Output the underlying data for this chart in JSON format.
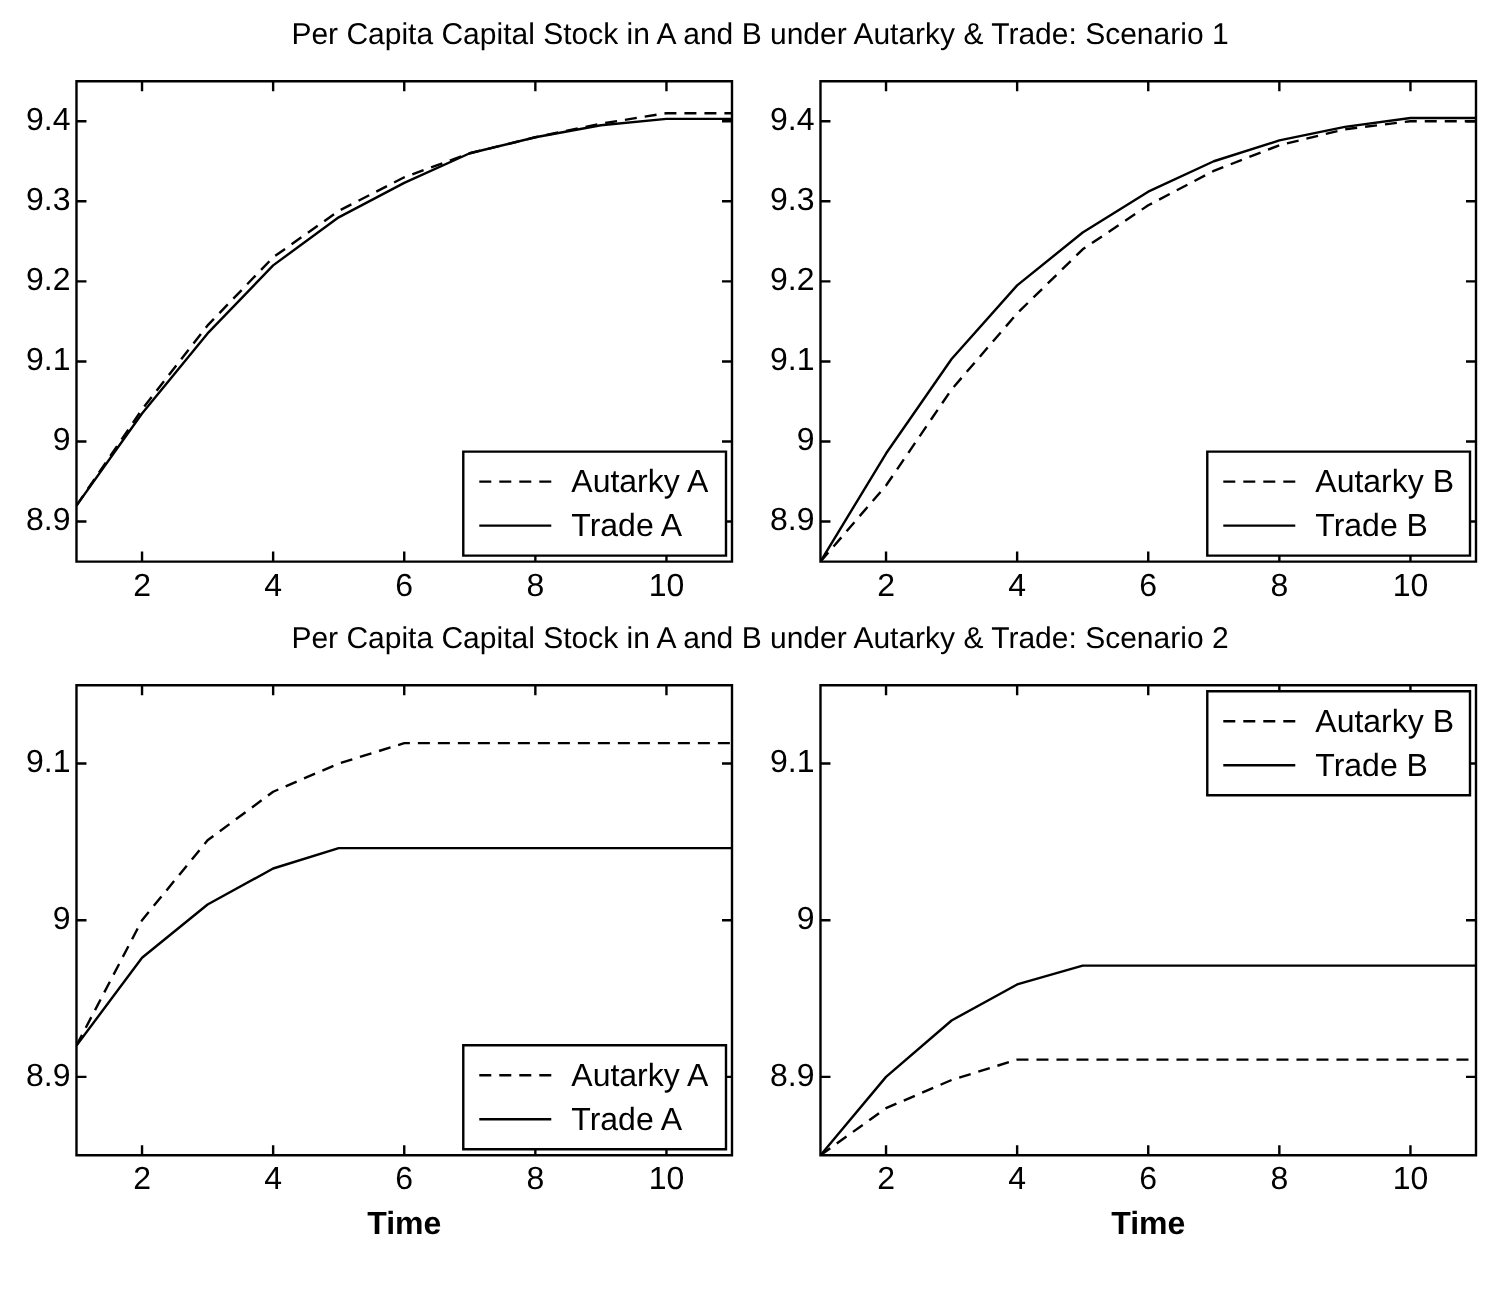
{
  "chart_data": [
    {
      "type": "line",
      "title": "Per Capita Capital Stock in A and B under Autarky & Trade: Scenario 1",
      "x": [
        1,
        2,
        3,
        4,
        5,
        6,
        7,
        8,
        9,
        10,
        11
      ],
      "xlim": [
        1,
        11
      ],
      "xticks": [
        2,
        4,
        6,
        8,
        10
      ],
      "ylim": [
        8.85,
        9.45
      ],
      "yticks": [
        8.9,
        9,
        9.1,
        9.2,
        9.3,
        9.4
      ],
      "grid": false,
      "legend": "bottom right",
      "series": [
        {
          "name": "Autarky A",
          "color": "#000000",
          "line_style": "dashed",
          "values": [
            8.92,
            9.04,
            9.145,
            9.23,
            9.288,
            9.33,
            9.36,
            9.38,
            9.397,
            9.41,
            9.41
          ]
        },
        {
          "name": "Trade A",
          "color": "#000000",
          "line_style": "solid",
          "values": [
            8.92,
            9.035,
            9.135,
            9.22,
            9.28,
            9.323,
            9.36,
            9.38,
            9.395,
            9.403,
            9.403
          ]
        }
      ]
    },
    {
      "type": "line",
      "x": [
        1,
        2,
        3,
        4,
        5,
        6,
        7,
        8,
        9,
        10,
        11
      ],
      "xlim": [
        1,
        11
      ],
      "xticks": [
        2,
        4,
        6,
        8,
        10
      ],
      "ylim": [
        8.85,
        9.45
      ],
      "yticks": [
        8.9,
        9,
        9.1,
        9.2,
        9.3,
        9.4
      ],
      "grid": false,
      "legend": "bottom right",
      "series": [
        {
          "name": "Autarky B",
          "color": "#000000",
          "line_style": "dashed",
          "values": [
            8.85,
            8.945,
            9.065,
            9.16,
            9.24,
            9.295,
            9.338,
            9.37,
            9.39,
            9.4,
            9.4
          ]
        },
        {
          "name": "Trade B",
          "color": "#000000",
          "line_style": "solid",
          "values": [
            8.85,
            8.985,
            9.103,
            9.195,
            9.261,
            9.312,
            9.35,
            9.376,
            9.393,
            9.404,
            9.404
          ]
        }
      ]
    },
    {
      "type": "line",
      "title": "Per Capita Capital Stock in A and B under Autarky & Trade: Scenario 2",
      "xlabel": "Time",
      "x": [
        1,
        2,
        3,
        4,
        5,
        6,
        7,
        8,
        9,
        10,
        11
      ],
      "xlim": [
        1,
        11
      ],
      "xticks": [
        2,
        4,
        6,
        8,
        10
      ],
      "ylim": [
        8.85,
        9.15
      ],
      "yticks": [
        8.9,
        9,
        9.1
      ],
      "grid": false,
      "legend": "bottom right",
      "series": [
        {
          "name": "Autarky A",
          "color": "#000000",
          "line_style": "dashed",
          "values": [
            8.92,
            9.0,
            9.051,
            9.082,
            9.1,
            9.113,
            9.113,
            9.113,
            9.113,
            9.113,
            9.113
          ]
        },
        {
          "name": "Trade A",
          "color": "#000000",
          "line_style": "solid",
          "values": [
            8.92,
            8.976,
            9.01,
            9.033,
            9.046,
            9.046,
            9.046,
            9.046,
            9.046,
            9.046,
            9.046
          ]
        }
      ]
    },
    {
      "type": "line",
      "xlabel": "Time",
      "x": [
        1,
        2,
        3,
        4,
        5,
        6,
        7,
        8,
        9,
        10,
        11
      ],
      "xlim": [
        1,
        11
      ],
      "xticks": [
        2,
        4,
        6,
        8,
        10
      ],
      "ylim": [
        8.85,
        9.15
      ],
      "yticks": [
        8.9,
        9,
        9.1
      ],
      "grid": false,
      "legend": "top right",
      "series": [
        {
          "name": "Autarky B",
          "color": "#000000",
          "line_style": "dashed",
          "values": [
            8.85,
            8.88,
            8.898,
            8.911,
            8.911,
            8.911,
            8.911,
            8.911,
            8.911,
            8.911,
            8.911
          ]
        },
        {
          "name": "Trade B",
          "color": "#000000",
          "line_style": "solid",
          "values": [
            8.85,
            8.9,
            8.936,
            8.959,
            8.971,
            8.971,
            8.971,
            8.971,
            8.971,
            8.971,
            8.971
          ]
        }
      ]
    }
  ]
}
